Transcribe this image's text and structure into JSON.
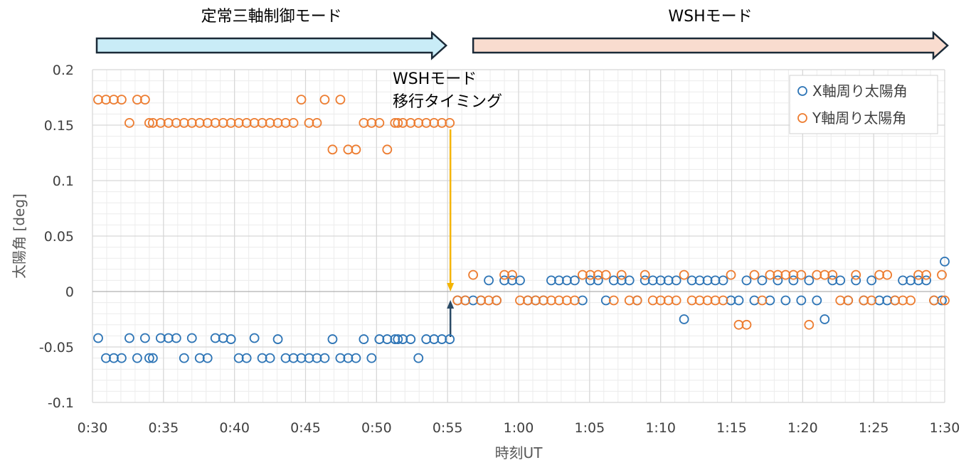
{
  "chart_data": {
    "type": "scatter",
    "xlabel": "時刻UT",
    "ylabel": "太陽角 [deg]",
    "xlim": [
      "0:30",
      "1:30"
    ],
    "ylim": [
      -0.1,
      0.2
    ],
    "x_ticks": [
      "0:30",
      "0:35",
      "0:40",
      "0:45",
      "0:50",
      "0:55",
      "1:00",
      "1:05",
      "1:10",
      "1:15",
      "1:20",
      "1:25",
      "1:30"
    ],
    "y_ticks": [
      "0.2",
      "0.15",
      "0.1",
      "0.05",
      "0",
      "-0.05",
      "-0.1"
    ],
    "grid": true,
    "legend_position": "top-right",
    "modes": [
      {
        "label": "定常三軸制御モード",
        "start": "0:30",
        "end": "0:55",
        "color": "#c9ecf7"
      },
      {
        "label": "WSHモード",
        "start": "0:56",
        "end": "1:30",
        "color": "#f9dccf"
      }
    ],
    "annotation": {
      "lines": [
        "WSHモード",
        "移行タイミング"
      ],
      "time": "0:55:12"
    },
    "series": [
      {
        "name": "X軸周り太陽角",
        "color": "#2e75b6",
        "points": [
          [
            "0:30:24",
            -0.042
          ],
          [
            "0:30:57",
            -0.06
          ],
          [
            "0:31:30",
            -0.06
          ],
          [
            "0:32:03",
            -0.06
          ],
          [
            "0:32:36",
            -0.042
          ],
          [
            "0:33:09",
            -0.06
          ],
          [
            "0:33:42",
            -0.042
          ],
          [
            "0:34:00",
            -0.06
          ],
          [
            "0:34:15",
            -0.06
          ],
          [
            "0:34:48",
            -0.042
          ],
          [
            "0:35:21",
            -0.042
          ],
          [
            "0:35:54",
            -0.042
          ],
          [
            "0:36:27",
            -0.06
          ],
          [
            "0:37:00",
            -0.042
          ],
          [
            "0:37:33",
            -0.06
          ],
          [
            "0:38:06",
            -0.06
          ],
          [
            "0:38:39",
            -0.042
          ],
          [
            "0:39:12",
            -0.042
          ],
          [
            "0:39:45",
            -0.043
          ],
          [
            "0:40:18",
            -0.06
          ],
          [
            "0:40:51",
            -0.06
          ],
          [
            "0:41:24",
            -0.042
          ],
          [
            "0:41:57",
            -0.06
          ],
          [
            "0:42:30",
            -0.06
          ],
          [
            "0:43:03",
            -0.043
          ],
          [
            "0:43:36",
            -0.06
          ],
          [
            "0:44:09",
            -0.06
          ],
          [
            "0:44:42",
            -0.06
          ],
          [
            "0:45:15",
            -0.06
          ],
          [
            "0:45:48",
            -0.06
          ],
          [
            "0:46:21",
            -0.06
          ],
          [
            "0:46:54",
            -0.043
          ],
          [
            "0:47:27",
            -0.06
          ],
          [
            "0:48:00",
            -0.06
          ],
          [
            "0:48:33",
            -0.06
          ],
          [
            "0:49:06",
            -0.043
          ],
          [
            "0:49:39",
            -0.06
          ],
          [
            "0:50:12",
            -0.043
          ],
          [
            "0:50:45",
            -0.043
          ],
          [
            "0:51:18",
            -0.043
          ],
          [
            "0:51:30",
            -0.043
          ],
          [
            "0:51:51",
            -0.043
          ],
          [
            "0:52:24",
            -0.043
          ],
          [
            "0:52:57",
            -0.06
          ],
          [
            "0:53:30",
            -0.043
          ],
          [
            "0:54:03",
            -0.043
          ],
          [
            "0:54:36",
            -0.043
          ],
          [
            "0:55:09",
            -0.043
          ],
          [
            "0:55:42",
            -0.008
          ],
          [
            "0:56:15",
            -0.008
          ],
          [
            "0:56:48",
            -0.008
          ],
          [
            "0:57:21",
            -0.008
          ],
          [
            "0:57:54",
            0.01
          ],
          [
            "0:58:27",
            -0.008
          ],
          [
            "0:59:00",
            0.01
          ],
          [
            "0:59:33",
            0.01
          ],
          [
            "1:00:06",
            0.01
          ],
          [
            "1:00:39",
            -0.008
          ],
          [
            "1:01:12",
            -0.008
          ],
          [
            "1:01:45",
            -0.008
          ],
          [
            "1:02:18",
            0.01
          ],
          [
            "1:02:51",
            0.01
          ],
          [
            "1:03:24",
            0.01
          ],
          [
            "1:03:57",
            0.01
          ],
          [
            "1:04:30",
            -0.008
          ],
          [
            "1:05:03",
            0.01
          ],
          [
            "1:05:36",
            0.01
          ],
          [
            "1:06:09",
            -0.008
          ],
          [
            "1:06:42",
            0.01
          ],
          [
            "1:07:15",
            0.01
          ],
          [
            "1:07:48",
            0.01
          ],
          [
            "1:08:21",
            -0.008
          ],
          [
            "1:08:54",
            0.01
          ],
          [
            "1:09:27",
            0.01
          ],
          [
            "1:10:00",
            0.01
          ],
          [
            "1:10:33",
            0.01
          ],
          [
            "1:11:06",
            0.01
          ],
          [
            "1:11:39",
            -0.025
          ],
          [
            "1:12:12",
            0.01
          ],
          [
            "1:12:45",
            0.01
          ],
          [
            "1:13:18",
            0.01
          ],
          [
            "1:13:51",
            0.01
          ],
          [
            "1:14:24",
            0.01
          ],
          [
            "1:14:57",
            -0.008
          ],
          [
            "1:15:30",
            -0.008
          ],
          [
            "1:16:03",
            0.01
          ],
          [
            "1:16:36",
            -0.008
          ],
          [
            "1:17:09",
            0.01
          ],
          [
            "1:17:42",
            -0.008
          ],
          [
            "1:18:15",
            0.01
          ],
          [
            "1:18:48",
            -0.008
          ],
          [
            "1:19:21",
            0.01
          ],
          [
            "1:19:54",
            -0.008
          ],
          [
            "1:20:27",
            0.01
          ],
          [
            "1:21:00",
            -0.008
          ],
          [
            "1:21:33",
            -0.025
          ],
          [
            "1:22:06",
            0.01
          ],
          [
            "1:22:39",
            0.01
          ],
          [
            "1:23:12",
            -0.008
          ],
          [
            "1:23:45",
            0.01
          ],
          [
            "1:24:18",
            -0.008
          ],
          [
            "1:24:51",
            0.01
          ],
          [
            "1:25:24",
            -0.008
          ],
          [
            "1:25:57",
            -0.008
          ],
          [
            "1:26:30",
            -0.008
          ],
          [
            "1:27:03",
            0.01
          ],
          [
            "1:27:36",
            0.01
          ],
          [
            "1:28:09",
            0.01
          ],
          [
            "1:28:42",
            0.01
          ],
          [
            "1:29:15",
            -0.008
          ],
          [
            "1:29:48",
            -0.008
          ],
          [
            "1:30:00",
            0.027
          ]
        ]
      },
      {
        "name": "Y軸周り太陽角",
        "color": "#ed7d31",
        "points": [
          [
            "0:30:24",
            0.173
          ],
          [
            "0:30:57",
            0.173
          ],
          [
            "0:31:30",
            0.173
          ],
          [
            "0:32:03",
            0.173
          ],
          [
            "0:32:36",
            0.152
          ],
          [
            "0:33:09",
            0.173
          ],
          [
            "0:33:42",
            0.173
          ],
          [
            "0:34:00",
            0.152
          ],
          [
            "0:34:15",
            0.152
          ],
          [
            "0:34:48",
            0.152
          ],
          [
            "0:35:21",
            0.152
          ],
          [
            "0:35:54",
            0.152
          ],
          [
            "0:36:27",
            0.152
          ],
          [
            "0:37:00",
            0.152
          ],
          [
            "0:37:33",
            0.152
          ],
          [
            "0:38:06",
            0.152
          ],
          [
            "0:38:39",
            0.152
          ],
          [
            "0:39:12",
            0.152
          ],
          [
            "0:39:45",
            0.152
          ],
          [
            "0:40:18",
            0.152
          ],
          [
            "0:40:51",
            0.152
          ],
          [
            "0:41:24",
            0.152
          ],
          [
            "0:41:57",
            0.152
          ],
          [
            "0:42:30",
            0.152
          ],
          [
            "0:43:03",
            0.152
          ],
          [
            "0:43:36",
            0.152
          ],
          [
            "0:44:09",
            0.152
          ],
          [
            "0:44:42",
            0.173
          ],
          [
            "0:45:15",
            0.152
          ],
          [
            "0:45:48",
            0.152
          ],
          [
            "0:46:21",
            0.173
          ],
          [
            "0:46:54",
            0.128
          ],
          [
            "0:47:27",
            0.173
          ],
          [
            "0:48:00",
            0.128
          ],
          [
            "0:48:33",
            0.128
          ],
          [
            "0:49:06",
            0.152
          ],
          [
            "0:49:39",
            0.152
          ],
          [
            "0:50:12",
            0.152
          ],
          [
            "0:50:45",
            0.128
          ],
          [
            "0:51:18",
            0.152
          ],
          [
            "0:51:30",
            0.152
          ],
          [
            "0:51:51",
            0.152
          ],
          [
            "0:52:24",
            0.152
          ],
          [
            "0:52:57",
            0.152
          ],
          [
            "0:53:30",
            0.152
          ],
          [
            "0:54:03",
            0.152
          ],
          [
            "0:54:36",
            0.152
          ],
          [
            "0:55:09",
            0.152
          ],
          [
            "0:55:42",
            -0.008
          ],
          [
            "0:56:15",
            -0.008
          ],
          [
            "0:56:48",
            0.015
          ],
          [
            "0:57:21",
            -0.008
          ],
          [
            "0:57:54",
            -0.008
          ],
          [
            "0:58:27",
            -0.008
          ],
          [
            "0:59:00",
            0.015
          ],
          [
            "0:59:33",
            0.015
          ],
          [
            "1:00:06",
            -0.008
          ],
          [
            "1:00:39",
            -0.008
          ],
          [
            "1:01:12",
            -0.008
          ],
          [
            "1:01:45",
            -0.008
          ],
          [
            "1:02:18",
            -0.008
          ],
          [
            "1:02:51",
            -0.008
          ],
          [
            "1:03:24",
            -0.008
          ],
          [
            "1:03:57",
            -0.008
          ],
          [
            "1:04:30",
            0.015
          ],
          [
            "1:05:03",
            0.015
          ],
          [
            "1:05:36",
            0.015
          ],
          [
            "1:06:09",
            0.015
          ],
          [
            "1:06:42",
            -0.008
          ],
          [
            "1:07:15",
            0.015
          ],
          [
            "1:07:48",
            -0.008
          ],
          [
            "1:08:21",
            -0.008
          ],
          [
            "1:08:54",
            0.015
          ],
          [
            "1:09:27",
            -0.008
          ],
          [
            "1:10:00",
            -0.008
          ],
          [
            "1:10:33",
            -0.008
          ],
          [
            "1:11:06",
            -0.008
          ],
          [
            "1:11:39",
            0.015
          ],
          [
            "1:12:12",
            -0.008
          ],
          [
            "1:12:45",
            -0.008
          ],
          [
            "1:13:18",
            -0.008
          ],
          [
            "1:13:51",
            -0.008
          ],
          [
            "1:14:24",
            -0.008
          ],
          [
            "1:14:57",
            0.015
          ],
          [
            "1:15:30",
            -0.03
          ],
          [
            "1:16:03",
            -0.03
          ],
          [
            "1:16:36",
            0.015
          ],
          [
            "1:17:09",
            -0.008
          ],
          [
            "1:17:42",
            0.015
          ],
          [
            "1:18:15",
            0.015
          ],
          [
            "1:18:48",
            0.015
          ],
          [
            "1:19:21",
            0.015
          ],
          [
            "1:19:54",
            0.015
          ],
          [
            "1:20:27",
            -0.03
          ],
          [
            "1:21:00",
            0.015
          ],
          [
            "1:21:33",
            0.015
          ],
          [
            "1:22:06",
            0.015
          ],
          [
            "1:22:39",
            -0.008
          ],
          [
            "1:23:12",
            -0.008
          ],
          [
            "1:23:45",
            0.015
          ],
          [
            "1:24:18",
            -0.008
          ],
          [
            "1:24:51",
            -0.008
          ],
          [
            "1:25:24",
            0.015
          ],
          [
            "1:25:57",
            0.015
          ],
          [
            "1:26:30",
            -0.008
          ],
          [
            "1:27:03",
            -0.008
          ],
          [
            "1:27:36",
            -0.008
          ],
          [
            "1:28:09",
            0.015
          ],
          [
            "1:28:42",
            0.015
          ],
          [
            "1:29:15",
            -0.008
          ],
          [
            "1:29:48",
            0.015
          ],
          [
            "1:30:00",
            -0.008
          ]
        ]
      }
    ]
  }
}
